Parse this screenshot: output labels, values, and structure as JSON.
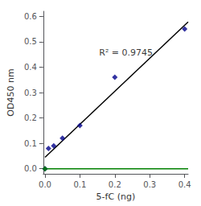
{
  "chart_data": {
    "type": "scatter",
    "xlabel": "5-fC (ng)",
    "ylabel": "OD450 nm",
    "xlim": [
      -0.005,
      0.41
    ],
    "ylim": [
      -0.02,
      0.62
    ],
    "xticks": [
      {
        "value": 0,
        "label": "0.0"
      },
      0.1,
      0.2,
      0.3,
      0.4
    ],
    "yticks": [
      {
        "value": 0,
        "label": "0.0"
      },
      0.1,
      0.2,
      0.3,
      0.4,
      0.5,
      0.6
    ],
    "grid": false,
    "series": [
      {
        "type": "line",
        "color": "#008000",
        "line_style": "solid",
        "x": [
          -0.005,
          0.41
        ],
        "values": [
          0.0,
          0.0
        ]
      },
      {
        "type": "line",
        "color": "#000000",
        "line_style": "solid",
        "x": [
          0.0,
          0.41
        ],
        "values": [
          0.045,
          0.578
        ]
      },
      {
        "type": "scatter",
        "color": "#00008B",
        "marker": "diamond",
        "x": [
          0.0,
          0.01,
          0.025,
          0.05,
          0.1,
          0.2,
          0.4
        ],
        "values": [
          0.0,
          0.08,
          0.09,
          0.12,
          0.17,
          0.36,
          0.55
        ]
      },
      {
        "type": "scatter",
        "color": "#008000",
        "marker": "diamond",
        "x": [
          0.0
        ],
        "values": [
          0.0
        ]
      }
    ],
    "annotations": [
      {
        "text": "R² = 0.9745",
        "x": 0.155,
        "y": 0.44
      }
    ]
  }
}
